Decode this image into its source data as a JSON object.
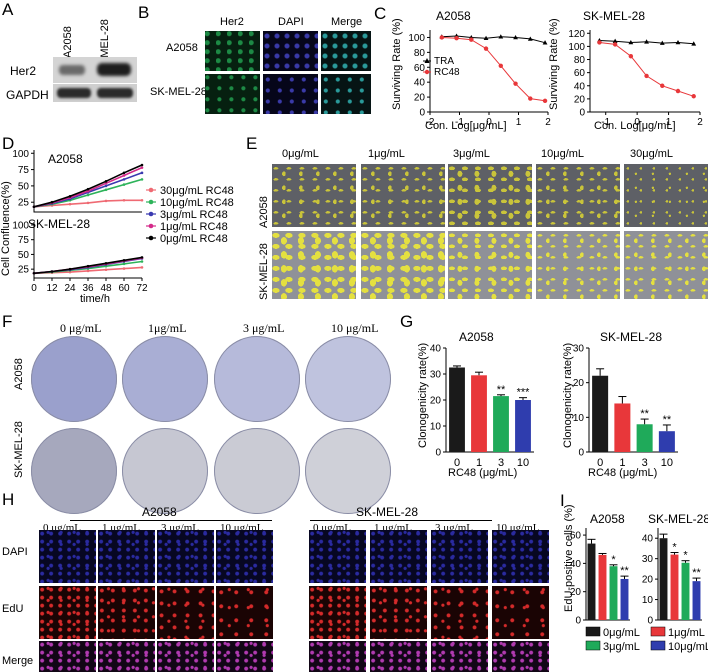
{
  "panels": {
    "A": "A",
    "B": "B",
    "C": "C",
    "D": "D",
    "E": "E",
    "F": "F",
    "G": "G",
    "H": "H",
    "I": "I"
  },
  "A": {
    "cols": [
      "A2058",
      "SK-MEL-28"
    ],
    "rows": [
      "Her2",
      "GAPDH"
    ]
  },
  "B": {
    "cols": [
      "Her2",
      "DAPI",
      "Merge"
    ],
    "rows": [
      "A2058",
      "SK-MEL-28"
    ]
  },
  "C": {
    "charts": [
      {
        "title": "A2058",
        "ylabel": "Surviving Rate (%)",
        "xlabel": "Con. Log[μg/mL]",
        "yticks": [
          "0",
          "20",
          "40",
          "60",
          "80",
          "100"
        ],
        "xticks": [
          "-2",
          "-1",
          "0",
          "1",
          "2"
        ],
        "legend": [
          "TRA",
          "RC48"
        ]
      },
      {
        "title": "SK-MEL-28",
        "ylabel": "Surviving Rate (%)",
        "xlabel": "Con. Log[μg/mL]",
        "yticks": [
          "0",
          "20",
          "40",
          "60",
          "80",
          "100",
          "120"
        ],
        "xticks": [
          "-1",
          "0",
          "1",
          "2"
        ]
      }
    ]
  },
  "chart_data": [
    {
      "type": "scatter",
      "title": "A2058",
      "xlabel": "Con. Log[μg/mL]",
      "ylabel": "Surviving Rate (%)",
      "ylim": [
        0,
        110
      ],
      "xlim": [
        -2,
        2
      ],
      "series": [
        {
          "name": "TRA",
          "color": "#000000",
          "x": [
            -1.6,
            -1.1,
            -0.6,
            -0.1,
            0.4,
            0.9,
            1.4,
            1.9
          ],
          "values": [
            101,
            102,
            100,
            99,
            101,
            100,
            98,
            93
          ]
        },
        {
          "name": "RC48",
          "color": "#e8373a",
          "x": [
            -1.6,
            -1.1,
            -0.6,
            -0.1,
            0.4,
            0.9,
            1.4,
            1.9
          ],
          "values": [
            100,
            99,
            97,
            85,
            62,
            38,
            18,
            15
          ]
        }
      ]
    },
    {
      "type": "scatter",
      "title": "SK-MEL-28",
      "xlabel": "Con. Log[μg/mL]",
      "ylabel": "Surviving Rate (%)",
      "ylim": [
        0,
        125
      ],
      "xlim": [
        -1.5,
        2
      ],
      "series": [
        {
          "name": "TRA",
          "color": "#000000",
          "x": [
            -1.2,
            -0.7,
            -0.2,
            0.3,
            0.8,
            1.3,
            1.8
          ],
          "values": [
            109,
            108,
            106,
            107,
            105,
            106,
            104
          ]
        },
        {
          "name": "RC48",
          "color": "#e8373a",
          "x": [
            -1.2,
            -0.7,
            -0.2,
            0.3,
            0.8,
            1.3,
            1.8
          ],
          "values": [
            106,
            103,
            85,
            55,
            40,
            32,
            24
          ]
        }
      ]
    },
    {
      "type": "line",
      "title": "A2058",
      "xlabel": "time/h",
      "ylabel": "Cell Confluence(%)",
      "series": [
        {
          "name": "30μg/mL RC48",
          "color": "#ef6a73",
          "x": [
            0,
            12,
            24,
            36,
            48,
            60,
            72
          ],
          "values": [
            18,
            20,
            22,
            24,
            27,
            28,
            28
          ]
        },
        {
          "name": "10μg/mL RC48",
          "color": "#2db35a",
          "x": [
            0,
            12,
            24,
            36,
            48,
            60,
            72
          ],
          "values": [
            18,
            22,
            28,
            36,
            44,
            52,
            60
          ]
        },
        {
          "name": "3μg/mL RC48",
          "color": "#3a3ab0",
          "x": [
            0,
            12,
            24,
            36,
            48,
            60,
            72
          ],
          "values": [
            18,
            23,
            30,
            40,
            50,
            60,
            70
          ]
        },
        {
          "name": "1μg/mL RC48",
          "color": "#d42a8a",
          "x": [
            0,
            12,
            24,
            36,
            48,
            60,
            72
          ],
          "values": [
            18,
            24,
            32,
            42,
            54,
            66,
            78
          ]
        },
        {
          "name": "0μg/mL RC48",
          "color": "#000000",
          "x": [
            0,
            12,
            24,
            36,
            48,
            60,
            72
          ],
          "values": [
            18,
            25,
            34,
            45,
            57,
            70,
            82
          ]
        }
      ]
    },
    {
      "type": "line",
      "title": "SK-MEL-28",
      "xlabel": "time/h",
      "ylabel": "Cell Confluence(%)",
      "series": [
        {
          "name": "30μg/mL RC48",
          "color": "#ef6a73",
          "x": [
            0,
            12,
            24,
            36,
            48,
            60,
            72
          ],
          "values": [
            18,
            19,
            20,
            22,
            24,
            26,
            28
          ]
        },
        {
          "name": "10μg/mL RC48",
          "color": "#2db35a",
          "x": [
            0,
            12,
            24,
            36,
            48,
            60,
            72
          ],
          "values": [
            18,
            20,
            23,
            26,
            30,
            34,
            38
          ]
        },
        {
          "name": "3μg/mL RC48",
          "color": "#3a3ab0",
          "x": [
            0,
            12,
            24,
            36,
            48,
            60,
            72
          ],
          "values": [
            18,
            21,
            24,
            28,
            33,
            38,
            43
          ]
        },
        {
          "name": "1μg/mL RC48",
          "color": "#d42a8a",
          "x": [
            0,
            12,
            24,
            36,
            48,
            60,
            72
          ],
          "values": [
            18,
            21,
            25,
            29,
            34,
            39,
            44
          ]
        },
        {
          "name": "0μg/mL RC48",
          "color": "#000000",
          "x": [
            0,
            12,
            24,
            36,
            48,
            60,
            72
          ],
          "values": [
            18,
            21,
            25,
            30,
            35,
            40,
            45
          ]
        }
      ]
    },
    {
      "type": "bar",
      "title": "A2058",
      "xlabel": "RC48 (μg/mL)",
      "ylabel": "Clonogenicity rate(%)",
      "ylim": [
        0,
        40
      ],
      "categories": [
        "0",
        "1",
        "3",
        "10"
      ],
      "values": [
        32.5,
        29.5,
        21.5,
        20
      ],
      "errors": [
        0.6,
        1.2,
        0.5,
        0.9
      ],
      "colors": [
        "#1a1a1a",
        "#e8373a",
        "#1faa5a",
        "#2f3dae"
      ],
      "annotations": [
        "",
        "",
        "**",
        "***"
      ]
    },
    {
      "type": "bar",
      "title": "SK-MEL-28",
      "xlabel": "RC48 (μg/mL)",
      "ylabel": "Clonogenicity rate(%)",
      "ylim": [
        0,
        30
      ],
      "categories": [
        "0",
        "1",
        "3",
        "10"
      ],
      "values": [
        22,
        14,
        8,
        6
      ],
      "errors": [
        2,
        2,
        1.5,
        1.8
      ],
      "colors": [
        "#1a1a1a",
        "#e8373a",
        "#1faa5a",
        "#2f3dae"
      ],
      "annotations": [
        "",
        "",
        "**",
        "**"
      ]
    },
    {
      "type": "bar",
      "title": "A2058",
      "ylabel": "EdU-positive cells (%)",
      "ylim": [
        0,
        65
      ],
      "categories": [
        "0μg/mL",
        "1μg/mL",
        "3μg/mL",
        "10μg/mL"
      ],
      "values": [
        54,
        46,
        38,
        29
      ],
      "errors": [
        3,
        1,
        1,
        2
      ],
      "colors": [
        "#1a1a1a",
        "#e8373a",
        "#1faa5a",
        "#2f3dae"
      ],
      "annotations": [
        "",
        "",
        "*",
        "**"
      ]
    },
    {
      "type": "bar",
      "title": "SK-MEL-28",
      "ylabel": "EdU-positive cells (%)",
      "ylim": [
        0,
        45
      ],
      "categories": [
        "0μg/mL",
        "1μg/mL",
        "3μg/mL",
        "10μg/mL"
      ],
      "values": [
        40,
        32,
        28,
        19
      ],
      "errors": [
        2,
        1,
        1,
        1.5
      ],
      "colors": [
        "#1a1a1a",
        "#e8373a",
        "#1faa5a",
        "#2f3dae"
      ],
      "annotations": [
        "",
        "*",
        "*",
        "**"
      ]
    }
  ],
  "C_axes": {
    "a_yticks": [
      "0",
      "20",
      "40",
      "60",
      "80",
      "100"
    ],
    "a_xticks": [
      "-2",
      "-1",
      "0",
      "1",
      "2"
    ],
    "b_yticks": [
      "0",
      "20",
      "40",
      "60",
      "80",
      "100",
      "120"
    ],
    "b_xticks": [
      "-1",
      "0",
      "1",
      "2"
    ]
  },
  "D": {
    "ylabel": "Cell Confluence(%)",
    "xlabel": "time/h",
    "title_top": "A2058",
    "title_bottom": "SK-MEL-28",
    "yticks": [
      "25",
      "50",
      "75",
      "100"
    ],
    "xticks": [
      "0",
      "12",
      "24",
      "36",
      "48",
      "60",
      "72"
    ]
  },
  "E": {
    "cols": [
      "0μg/mL",
      "1μg/mL",
      "3μg/mL",
      "10μg/mL",
      "30μg/mL"
    ],
    "rows": [
      "A2058",
      "SK-MEL-28"
    ]
  },
  "F": {
    "cols": [
      "0 μg/mL",
      "1μg/mL",
      "3 μg/mL",
      "10 μg/mL"
    ],
    "rows": [
      "A2058",
      "SK-MEL-28"
    ]
  },
  "G": {
    "a_yticks": [
      "0",
      "10",
      "20",
      "30",
      "40"
    ],
    "b_yticks": [
      "0",
      "10",
      "20",
      "30"
    ]
  },
  "H": {
    "groups": [
      "A2058",
      "SK-MEL-28"
    ],
    "cols": [
      "0 μg/mL",
      "1 μg/mL",
      "3 μg/mL",
      "10 μg/mL"
    ],
    "rows": [
      "DAPI",
      "EdU",
      "Merge"
    ]
  },
  "I": {
    "ylabel": "EdU-positive cells (%)",
    "a_yticks": [
      "0",
      "20",
      "40",
      "60"
    ],
    "b_yticks": [
      "0",
      "10",
      "20",
      "30",
      "40"
    ],
    "legend": [
      "0μg/mL",
      "1μg/mL",
      "3μg/mL",
      "10μg/mL"
    ]
  }
}
